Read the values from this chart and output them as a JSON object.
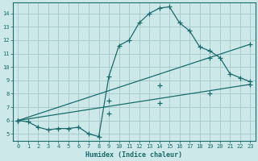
{
  "background_color": "#cde8e8",
  "grid_color": "#a8cccc",
  "line_color": "#1a6b6b",
  "xlabel": "Humidex (Indice chaleur)",
  "xlim": [
    -0.5,
    23.5
  ],
  "ylim": [
    4.5,
    14.8
  ],
  "yticks": [
    5,
    6,
    7,
    8,
    9,
    10,
    11,
    12,
    13,
    14
  ],
  "xticks": [
    0,
    1,
    2,
    3,
    4,
    5,
    6,
    7,
    8,
    9,
    10,
    11,
    12,
    13,
    14,
    15,
    16,
    17,
    18,
    19,
    20,
    21,
    22,
    23
  ],
  "line1_x": [
    0,
    1,
    2,
    3,
    4,
    5,
    6,
    7,
    8,
    9,
    10,
    11,
    12,
    13,
    14,
    15,
    16,
    17,
    18,
    19,
    20,
    21,
    22,
    23
  ],
  "line1_y": [
    6.0,
    5.9,
    5.5,
    5.3,
    5.4,
    5.4,
    5.5,
    5.0,
    4.8,
    9.3,
    11.6,
    12.0,
    13.3,
    14.0,
    14.4,
    14.5,
    13.3,
    12.7,
    11.5,
    11.2,
    10.7,
    9.5,
    9.2,
    8.9
  ],
  "line2_x": [
    0,
    23
  ],
  "line2_y": [
    6.0,
    11.7
  ],
  "line3_x": [
    0,
    23
  ],
  "line3_y": [
    6.0,
    8.7
  ],
  "marker_x": [
    0,
    9,
    14,
    19,
    23
  ],
  "marker2_y": [
    6.0,
    7.5,
    8.6,
    10.7,
    11.7
  ],
  "marker3_y": [
    6.0,
    6.5,
    7.3,
    8.0,
    8.7
  ]
}
